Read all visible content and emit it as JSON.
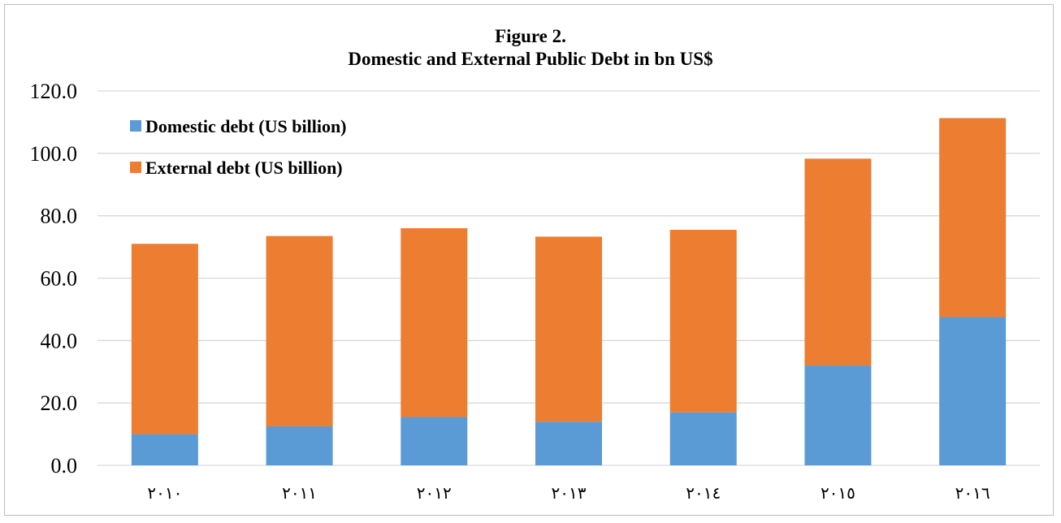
{
  "chart_data": {
    "type": "bar",
    "stacked": true,
    "title": "Figure 2.",
    "subtitle": "Domestic and External Public Debt in bn US$",
    "xlabel": "",
    "ylabel": "",
    "categories": [
      "٢٠١٠",
      "٢٠١١",
      "٢٠١٢",
      "٢٠١٣",
      "٢٠١٤",
      "٢٠١٥",
      "٢٠١٦"
    ],
    "series": [
      {
        "name": "Domestic debt (US billion)",
        "color": "#5b9bd5",
        "values": [
          10.0,
          12.5,
          15.5,
          14.0,
          17.0,
          32.0,
          47.5
        ]
      },
      {
        "name": "External debt (US billion)",
        "color": "#ed7d31",
        "values": [
          61.0,
          61.0,
          60.5,
          59.3,
          58.5,
          66.3,
          63.8
        ]
      }
    ],
    "ylim": [
      0,
      120
    ],
    "yticks": [
      "0.0",
      "20.0",
      "40.0",
      "60.0",
      "80.0",
      "100.0",
      "120.0"
    ],
    "grid": true,
    "legend_position": "top-left"
  }
}
